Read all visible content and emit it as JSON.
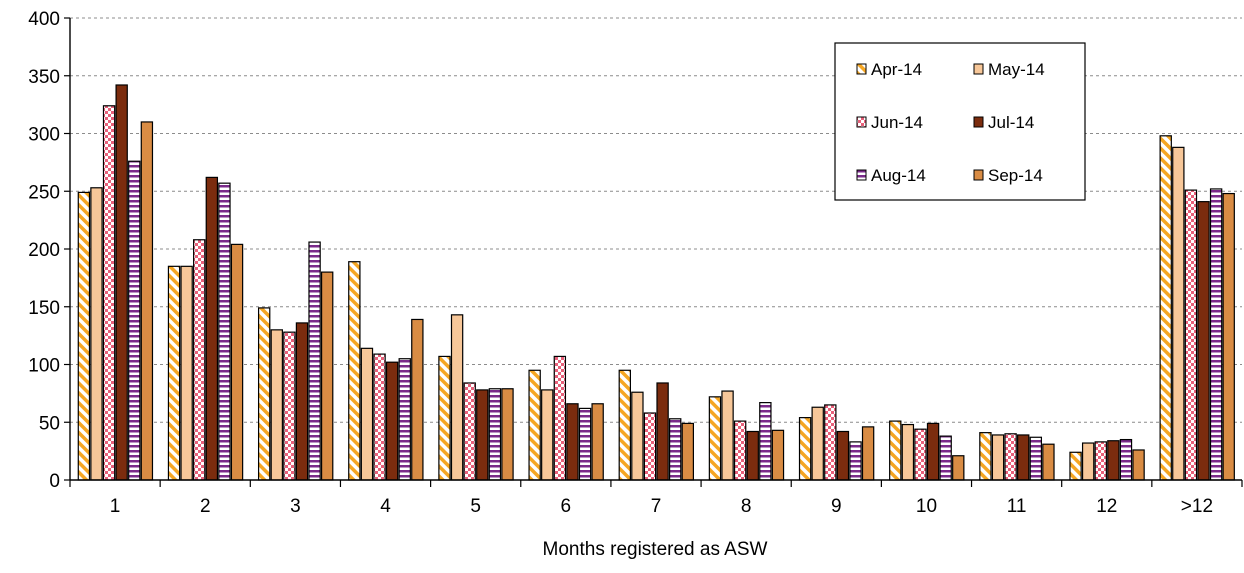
{
  "chart_data": {
    "type": "bar",
    "xlabel": "Months registered as ASW",
    "ylabel": "",
    "ylim": [
      0,
      400
    ],
    "yticks": [
      0,
      50,
      100,
      150,
      200,
      250,
      300,
      350,
      400
    ],
    "grid": true,
    "legend_position": "top-right",
    "categories": [
      "1",
      "2",
      "3",
      "4",
      "5",
      "6",
      "7",
      "8",
      "9",
      "10",
      "11",
      "12",
      ">12"
    ],
    "series": [
      {
        "name": "Apr-14",
        "pattern": "diagonal-stripes",
        "color": "#f5a623",
        "values": [
          249,
          185,
          149,
          189,
          107,
          95,
          95,
          72,
          54,
          51,
          41,
          24,
          298
        ]
      },
      {
        "name": "May-14",
        "pattern": "solid",
        "color": "#f7c799",
        "values": [
          253,
          185,
          130,
          114,
          143,
          78,
          76,
          77,
          63,
          48,
          39,
          32,
          288
        ]
      },
      {
        "name": "Jun-14",
        "pattern": "checker",
        "color": "#e8607a",
        "values": [
          324,
          208,
          128,
          109,
          84,
          107,
          58,
          51,
          65,
          44,
          40,
          33,
          251
        ]
      },
      {
        "name": "Jul-14",
        "pattern": "solid",
        "color": "#7b2c0e",
        "values": [
          342,
          262,
          136,
          102,
          78,
          66,
          84,
          42,
          42,
          49,
          39,
          34,
          241
        ]
      },
      {
        "name": "Aug-14",
        "pattern": "horizontal-stripes",
        "color": "#7a2a8a",
        "values": [
          276,
          257,
          206,
          105,
          79,
          62,
          53,
          67,
          33,
          38,
          37,
          35,
          252
        ]
      },
      {
        "name": "Sep-14",
        "pattern": "solid",
        "color": "#d98c44",
        "values": [
          310,
          204,
          180,
          139,
          79,
          66,
          49,
          43,
          46,
          21,
          31,
          26,
          248
        ]
      }
    ]
  }
}
